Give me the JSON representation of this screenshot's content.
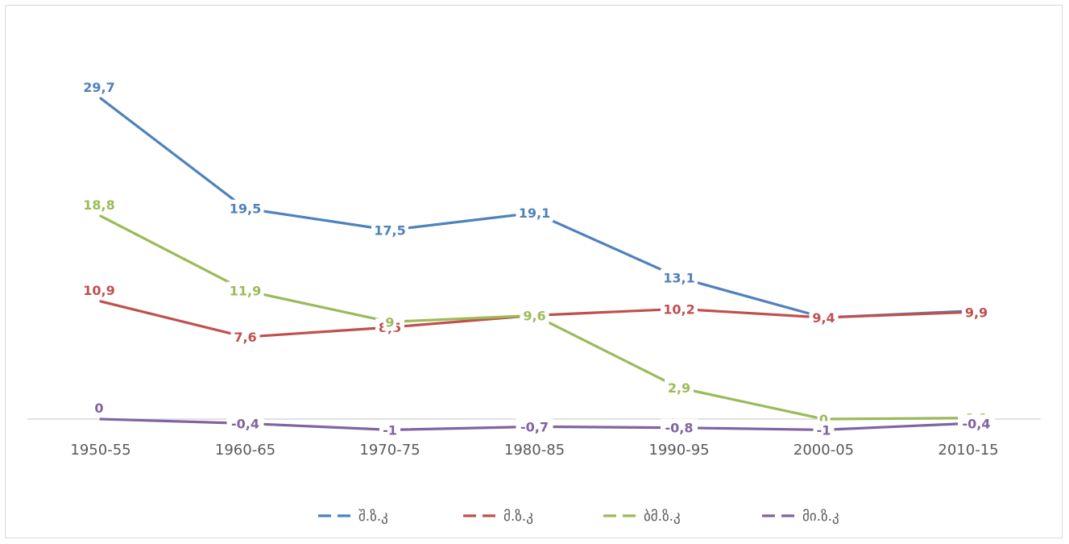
{
  "chart_data": {
    "type": "line",
    "categories": [
      "1950-55",
      "1960-65",
      "1970-75",
      "1980-85",
      "1990-95",
      "2000-05",
      "2010-15"
    ],
    "series": [
      {
        "name": "შ.ზ.კ",
        "color": "#4f81bd",
        "values": [
          29.7,
          19.5,
          17.5,
          19.1,
          13.1,
          9.4,
          10
        ],
        "labels": [
          "29,7",
          "19,5",
          "17,5",
          "19,1",
          "13,1",
          "",
          "10"
        ]
      },
      {
        "name": "მ.ზ.კ",
        "color": "#c0504d",
        "values": [
          10.9,
          7.6,
          8.5,
          9.6,
          10.2,
          9.4,
          9.9
        ],
        "labels": [
          "10,9",
          "7,6",
          "8,5",
          "9,6",
          "10,2",
          "9,4",
          "9,9"
        ]
      },
      {
        "name": "ბმ.ზ.კ",
        "color": "#9bbb59",
        "values": [
          18.8,
          11.9,
          9,
          9.6,
          2.9,
          0,
          0.1
        ],
        "labels": [
          "18,8",
          "11,9",
          "9",
          "9,6",
          "2,9",
          "0",
          "0,1"
        ]
      },
      {
        "name": "მი.ზ.კ",
        "color": "#8064a2",
        "values": [
          0,
          -0.4,
          -1,
          -0.7,
          -0.8,
          -1,
          -0.4
        ],
        "labels": [
          "0",
          "-0,4",
          "-1",
          "-0,7",
          "-0,8",
          "-1",
          "-0,4"
        ]
      }
    ],
    "ylim": [
      -1,
      30
    ],
    "grid": false,
    "legend": "bottom-center",
    "title": "",
    "xlabel": "",
    "ylabel": ""
  }
}
